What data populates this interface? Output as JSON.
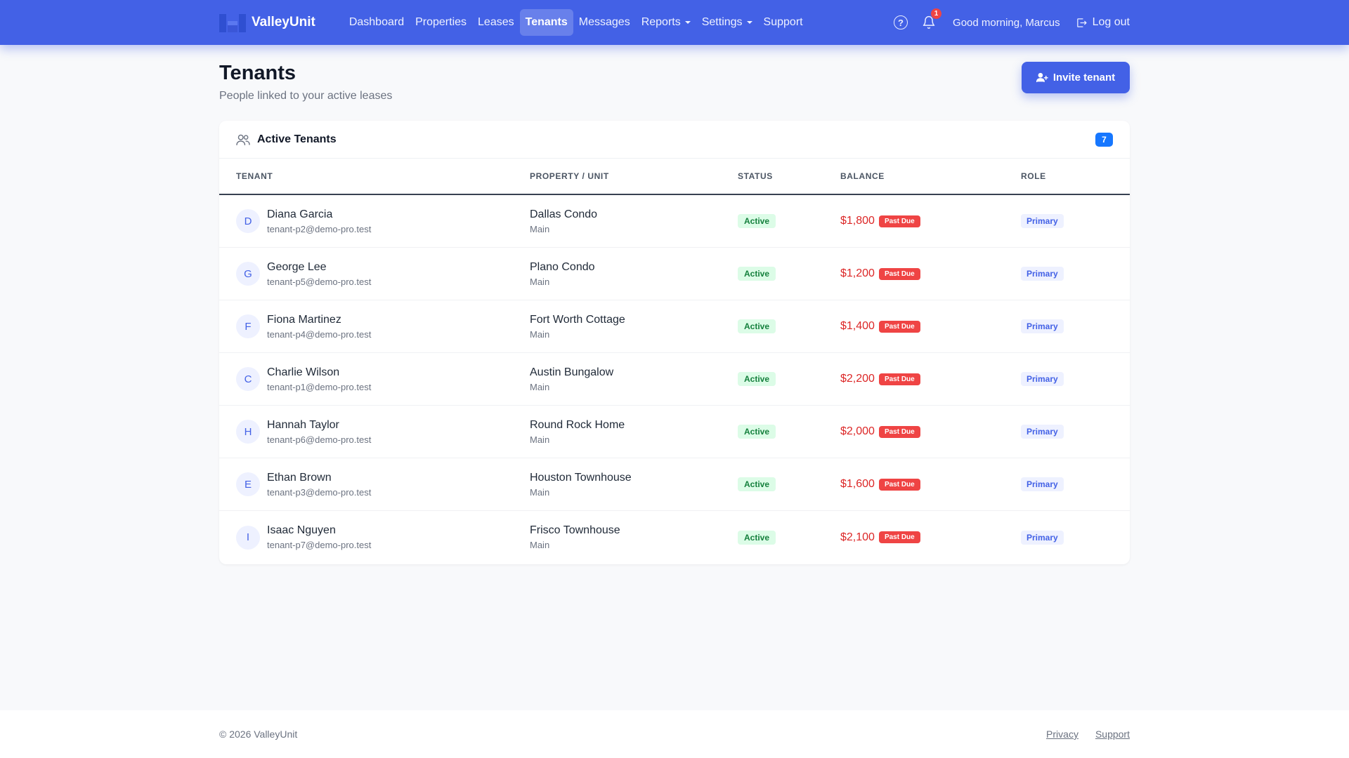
{
  "brand": {
    "name": "ValleyUnit",
    "icon": "building-logo-icon"
  },
  "nav": {
    "links": [
      {
        "label": "Dashboard",
        "active": false,
        "dropdown": false
      },
      {
        "label": "Properties",
        "active": false,
        "dropdown": false
      },
      {
        "label": "Leases",
        "active": false,
        "dropdown": false
      },
      {
        "label": "Tenants",
        "active": true,
        "dropdown": false
      },
      {
        "label": "Messages",
        "active": false,
        "dropdown": false
      },
      {
        "label": "Reports",
        "active": false,
        "dropdown": true
      },
      {
        "label": "Settings",
        "active": false,
        "dropdown": true
      },
      {
        "label": "Support",
        "active": false,
        "dropdown": false
      }
    ],
    "notification_count": "1",
    "greeting": "Good morning, Marcus",
    "logout_label": "Log out"
  },
  "header": {
    "title": "Tenants",
    "subtitle": "People linked to your active leases",
    "invite_label": "Invite tenant"
  },
  "table": {
    "title": "Active Tenants",
    "count": "7",
    "columns": [
      "TENANT",
      "PROPERTY / UNIT",
      "STATUS",
      "BALANCE",
      "ROLE"
    ],
    "rows": [
      {
        "initial": "D",
        "name": "Diana Garcia",
        "email": "tenant-p2@demo-pro.test",
        "property": "Dallas Condo",
        "unit": "Main",
        "status": "Active",
        "balance": "$1,800",
        "balance_flag": "Past Due",
        "role": "Primary"
      },
      {
        "initial": "G",
        "name": "George Lee",
        "email": "tenant-p5@demo-pro.test",
        "property": "Plano Condo",
        "unit": "Main",
        "status": "Active",
        "balance": "$1,200",
        "balance_flag": "Past Due",
        "role": "Primary"
      },
      {
        "initial": "F",
        "name": "Fiona Martinez",
        "email": "tenant-p4@demo-pro.test",
        "property": "Fort Worth Cottage",
        "unit": "Main",
        "status": "Active",
        "balance": "$1,400",
        "balance_flag": "Past Due",
        "role": "Primary"
      },
      {
        "initial": "C",
        "name": "Charlie Wilson",
        "email": "tenant-p1@demo-pro.test",
        "property": "Austin Bungalow",
        "unit": "Main",
        "status": "Active",
        "balance": "$2,200",
        "balance_flag": "Past Due",
        "role": "Primary"
      },
      {
        "initial": "H",
        "name": "Hannah Taylor",
        "email": "tenant-p6@demo-pro.test",
        "property": "Round Rock Home",
        "unit": "Main",
        "status": "Active",
        "balance": "$2,000",
        "balance_flag": "Past Due",
        "role": "Primary"
      },
      {
        "initial": "E",
        "name": "Ethan Brown",
        "email": "tenant-p3@demo-pro.test",
        "property": "Houston Townhouse",
        "unit": "Main",
        "status": "Active",
        "balance": "$1,600",
        "balance_flag": "Past Due",
        "role": "Primary"
      },
      {
        "initial": "I",
        "name": "Isaac Nguyen",
        "email": "tenant-p7@demo-pro.test",
        "property": "Frisco Townhouse",
        "unit": "Main",
        "status": "Active",
        "balance": "$2,100",
        "balance_flag": "Past Due",
        "role": "Primary"
      }
    ]
  },
  "footer": {
    "copyright": "© 2026 ValleyUnit",
    "links": [
      "Privacy",
      "Support"
    ]
  },
  "colors": {
    "primary": "#4361e6",
    "danger": "#ef4444",
    "success_bg": "#dcfce7",
    "success_text": "#15803d",
    "badge_blue": "#1677ff"
  }
}
